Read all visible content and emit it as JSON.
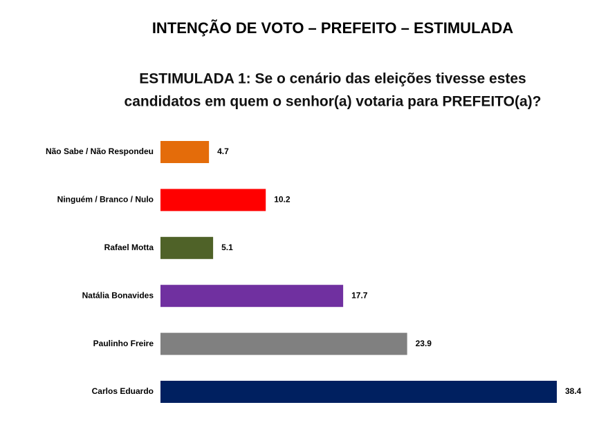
{
  "chart_data": {
    "type": "bar",
    "orientation": "horizontal",
    "title": "INTENÇÃO DE VOTO – PREFEITO – ESTIMULADA",
    "subtitle": [
      "ESTIMULADA 1: Se o cenário das eleições tivesse estes",
      "candidatos em quem o senhor(a) votaria para PREFEITO(a)?"
    ],
    "categories": [
      "Não Sabe / Não Respondeu",
      "Ninguém / Branco / Nulo",
      "Rafael Motta",
      "Natália Bonavides",
      "Paulinho Freire",
      "Carlos Eduardo"
    ],
    "values": [
      4.7,
      10.2,
      5.1,
      17.7,
      23.9,
      38.4
    ],
    "colors": [
      "#e46c0a",
      "#ff0000",
      "#4f6228",
      "#7030a0",
      "#808080",
      "#002060"
    ]
  }
}
